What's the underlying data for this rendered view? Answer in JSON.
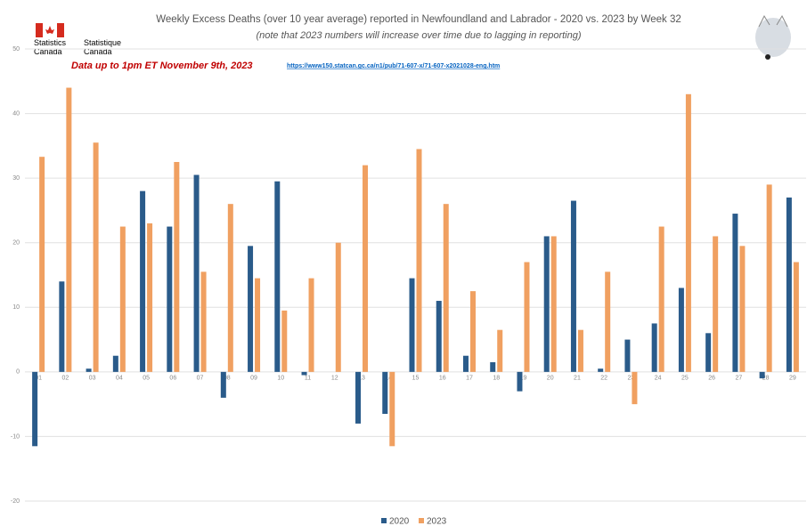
{
  "chart_data": {
    "type": "bar",
    "title": "Weekly Excess Deaths (over 10 year average) reported in Newfoundland and Labrador - 2020 vs. 2023 by Week 32",
    "subtitle": "(note that 2023 numbers will increase over time due to lagging in reporting)",
    "agency_en": "Statistics Canada",
    "agency_fr": "Statistique Canada",
    "annotation": "Data up to 1pm ET November 9th, 2023",
    "source_url": "https://www150.statcan.gc.ca/n1/pub/71-607-x/71-607-x2021028-eng.htm",
    "categories": [
      "01",
      "02",
      "03",
      "04",
      "05",
      "06",
      "07",
      "08",
      "09",
      "10",
      "11",
      "12",
      "13",
      "14",
      "15",
      "16",
      "17",
      "18",
      "19",
      "20",
      "21",
      "22",
      "23",
      "24",
      "25",
      "26",
      "27",
      "28",
      "29"
    ],
    "series": [
      {
        "name": "2020",
        "color": "#2a5b8a",
        "values": [
          -11.5,
          14,
          0.5,
          2.5,
          28,
          22.5,
          30.5,
          -4,
          19.5,
          29.5,
          -0.5,
          0,
          -8,
          -6.5,
          14.5,
          11,
          2.5,
          1.5,
          -3,
          21,
          26.5,
          0.5,
          5,
          7.5,
          13,
          6,
          24.5,
          -1,
          27
        ]
      },
      {
        "name": "2023",
        "color": "#f0a061",
        "values": [
          33.3,
          44,
          35.5,
          22.5,
          23,
          32.5,
          15.5,
          26,
          14.5,
          9.5,
          14.5,
          20,
          32,
          -11.5,
          34.5,
          26,
          12.5,
          6.5,
          17,
          21,
          6.5,
          15.5,
          -5,
          22.5,
          43,
          21,
          19.5,
          29,
          17
        ]
      }
    ],
    "ylim": [
      -20,
      50
    ],
    "yticks": [
      -20,
      -10,
      0,
      10,
      20,
      30,
      40,
      50
    ],
    "grid": true,
    "legend": "bottom"
  }
}
